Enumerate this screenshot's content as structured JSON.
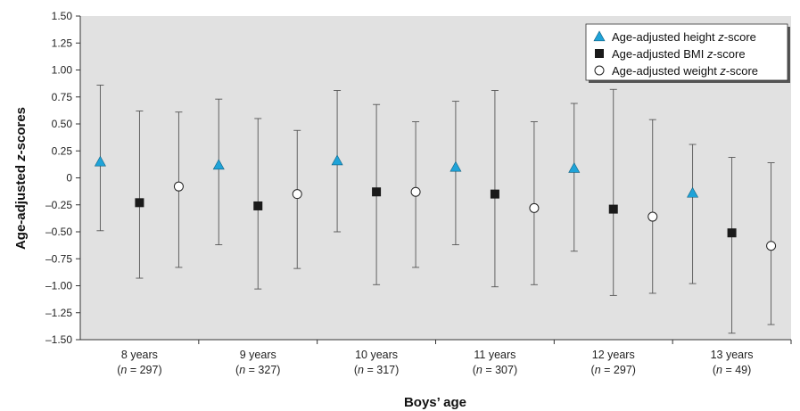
{
  "chart_data": {
    "type": "scatter",
    "xlabel": "Boys’ age",
    "ylabel": "Age-adjusted z-scores",
    "ylabel_plain": "Age-adjusted ",
    "ylabel_italic": "z",
    "ylabel_rest": "-scores",
    "ylim": [
      -1.5,
      1.5
    ],
    "yticks": [
      1.5,
      1.25,
      1.0,
      0.75,
      0.5,
      0.25,
      0,
      -0.25,
      -0.5,
      -0.75,
      -1.0,
      -1.25,
      -1.5
    ],
    "ytick_labels": [
      "1.50",
      "1.25",
      "1.00",
      "0.75",
      "0.50",
      "0.25",
      "0",
      "–0.25",
      "–0.50",
      "–0.75",
      "–1.00",
      "–1.25",
      "–1.50"
    ],
    "grid": false,
    "legend_position": "top-right",
    "categories": [
      {
        "label": "8 years",
        "n_prefix": "(",
        "n_var": "n",
        "n_text": " = 297)"
      },
      {
        "label": "9 years",
        "n_prefix": "(",
        "n_var": "n",
        "n_text": " = 327)"
      },
      {
        "label": "10 years",
        "n_prefix": "(",
        "n_var": "n",
        "n_text": " = 317)"
      },
      {
        "label": "11 years",
        "n_prefix": "(",
        "n_var": "n",
        "n_text": " = 307)"
      },
      {
        "label": "12 years",
        "n_prefix": "(",
        "n_var": "n",
        "n_text": " = 297)"
      },
      {
        "label": "13 years",
        "n_prefix": "(",
        "n_var": "n",
        "n_text": " = 49)"
      }
    ],
    "series": [
      {
        "name": "Age-adjusted height z-score",
        "name_plain": "Age-adjusted height ",
        "name_italic": "z",
        "name_rest": "-score",
        "marker": "triangle",
        "color": "#1fa3d8",
        "values": [
          0.15,
          0.12,
          0.16,
          0.1,
          0.09,
          -0.14
        ],
        "lower": [
          -0.49,
          -0.62,
          -0.5,
          -0.62,
          -0.68,
          -0.98
        ],
        "upper": [
          0.86,
          0.73,
          0.81,
          0.71,
          0.69,
          0.31
        ]
      },
      {
        "name": "Age-adjusted BMI z-score",
        "name_plain": "Age-adjusted BMI ",
        "name_italic": "z",
        "name_rest": "-score",
        "marker": "square",
        "color": "#1a1a1a",
        "values": [
          -0.23,
          -0.26,
          -0.13,
          -0.15,
          -0.29,
          -0.51
        ],
        "lower": [
          -0.93,
          -1.03,
          -0.99,
          -1.01,
          -1.09,
          -1.44
        ],
        "upper": [
          0.62,
          0.55,
          0.68,
          0.81,
          0.82,
          0.19
        ]
      },
      {
        "name": "Age-adjusted weight z-score",
        "name_plain": "Age-adjusted weight ",
        "name_italic": "z",
        "name_rest": "-score",
        "marker": "circle",
        "color": "#ffffff",
        "values": [
          -0.08,
          -0.15,
          -0.13,
          -0.28,
          -0.36,
          -0.63
        ],
        "lower": [
          -0.83,
          -0.84,
          -0.83,
          -0.99,
          -1.07,
          -1.36
        ],
        "upper": [
          0.61,
          0.44,
          0.52,
          0.52,
          0.54,
          0.14
        ]
      }
    ]
  },
  "colors": {
    "plot_background": "#e1e1e1",
    "axis": "#333333",
    "error_bar": "#555555"
  }
}
